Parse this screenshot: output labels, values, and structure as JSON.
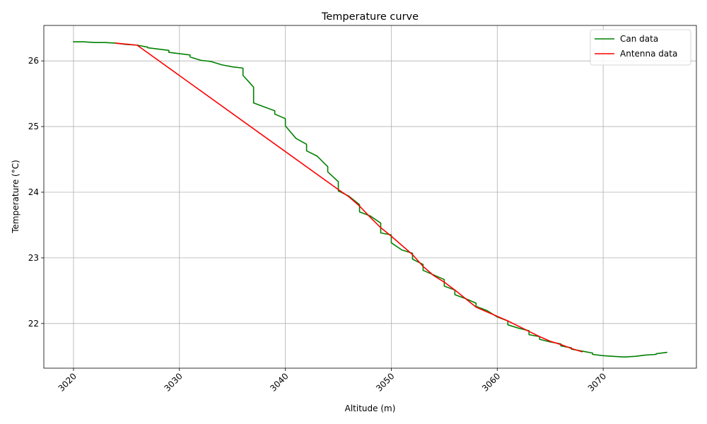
{
  "chart_data": {
    "type": "line",
    "title": "Temperature curve",
    "xlabel": "Altitude (m)",
    "ylabel": "Temperature (°C)",
    "xlim": [
      3017.2,
      3078.8
    ],
    "ylim": [
      21.32,
      26.54
    ],
    "xticks": [
      3020,
      3030,
      3040,
      3050,
      3060,
      3070
    ],
    "yticks": [
      22,
      23,
      24,
      25,
      26
    ],
    "grid": true,
    "legend_position": "top-right",
    "series": [
      {
        "name": "Can data",
        "color": "#008000",
        "x": [
          3020,
          3021,
          3022,
          3023,
          3024,
          3025,
          3026,
          3027,
          3027,
          3028,
          3029,
          3029,
          3030,
          3031,
          3031,
          3032,
          3033,
          3034,
          3035,
          3036,
          3036,
          3037,
          3037,
          3038,
          3039,
          3039,
          3040,
          3040,
          3041,
          3042,
          3042,
          3043,
          3044,
          3044,
          3045,
          3045,
          3046,
          3047,
          3047,
          3048,
          3049,
          3049,
          3050,
          3050,
          3051,
          3052,
          3052,
          3053,
          3053,
          3054,
          3055,
          3055,
          3056,
          3056,
          3057,
          3058,
          3058,
          3059,
          3060,
          3061,
          3061,
          3062,
          3063,
          3063,
          3064,
          3064,
          3065,
          3066,
          3066,
          3067,
          3067,
          3068,
          3069,
          3069,
          3070,
          3071,
          3072,
          3072,
          3073,
          3074,
          3075,
          3075,
          3076
        ],
        "y": [
          26.29,
          26.29,
          26.28,
          26.28,
          26.27,
          26.25,
          26.24,
          26.21,
          26.2,
          26.18,
          26.16,
          26.13,
          26.11,
          26.09,
          26.06,
          26.01,
          25.99,
          25.94,
          25.91,
          25.89,
          25.78,
          25.6,
          25.36,
          25.3,
          25.24,
          25.19,
          25.12,
          25.01,
          24.82,
          24.73,
          24.63,
          24.55,
          24.39,
          24.31,
          24.16,
          24.02,
          23.94,
          23.81,
          23.7,
          23.64,
          23.53,
          23.38,
          23.35,
          23.23,
          23.12,
          23.07,
          22.98,
          22.9,
          22.81,
          22.74,
          22.67,
          22.57,
          22.51,
          22.44,
          22.38,
          22.31,
          22.26,
          22.2,
          22.1,
          22.04,
          21.98,
          21.93,
          21.89,
          21.83,
          21.8,
          21.76,
          21.72,
          21.69,
          21.66,
          21.63,
          21.61,
          21.58,
          21.55,
          21.53,
          21.51,
          21.5,
          21.49,
          21.49,
          21.5,
          21.52,
          21.53,
          21.54,
          21.56
        ]
      },
      {
        "name": "Antenna data",
        "color": "#ff0000",
        "x": [
          3024,
          3026,
          3045,
          3046,
          3047,
          3048,
          3049,
          3050,
          3051,
          3052,
          3053,
          3054,
          3055,
          3056,
          3057,
          3058,
          3059,
          3060,
          3061,
          3062,
          3063,
          3064,
          3065,
          3066,
          3067,
          3068
        ],
        "y": [
          26.27,
          26.24,
          24.04,
          23.93,
          23.79,
          23.62,
          23.46,
          23.33,
          23.19,
          23.05,
          22.87,
          22.73,
          22.63,
          22.51,
          22.38,
          22.25,
          22.18,
          22.11,
          22.04,
          21.96,
          21.88,
          21.8,
          21.73,
          21.68,
          21.62,
          21.57
        ]
      }
    ]
  }
}
